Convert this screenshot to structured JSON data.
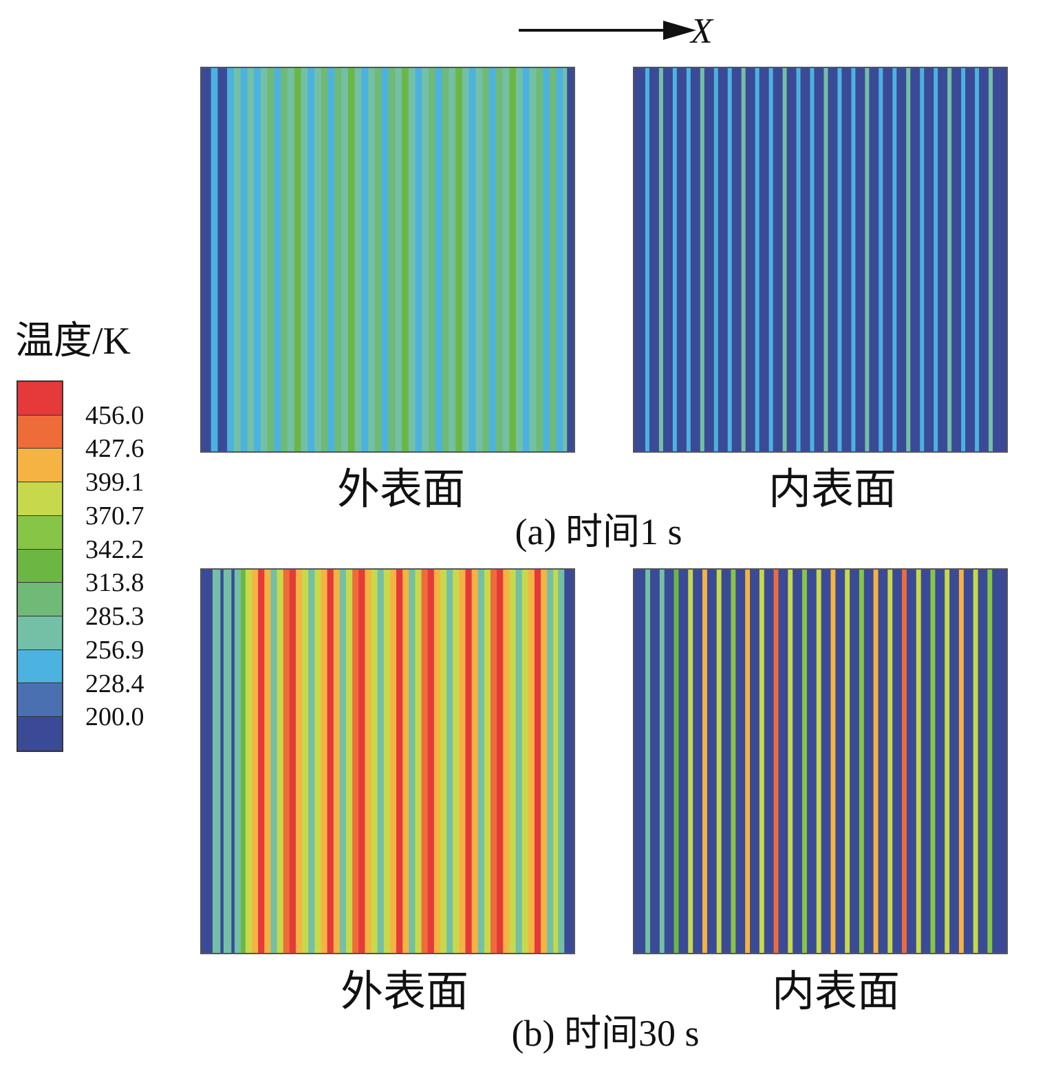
{
  "axis": {
    "direction_label": "X"
  },
  "legend": {
    "title": "温度/K",
    "ticks": [
      "456.0",
      "427.6",
      "399.1",
      "370.7",
      "342.2",
      "313.8",
      "285.3",
      "256.9",
      "228.4",
      "200.0"
    ],
    "colors": [
      "#e5393a",
      "#ee6b3a",
      "#f5b343",
      "#c7d94a",
      "#86c545",
      "#6cb744",
      "#6fba77",
      "#73c0a6",
      "#4cb2df",
      "#4a70b1",
      "#3b4a96"
    ]
  },
  "panels": [
    {
      "id": "a-outer",
      "label": "外表面"
    },
    {
      "id": "a-inner",
      "label": "内表面"
    },
    {
      "id": "b-outer",
      "label": "外表面"
    },
    {
      "id": "b-inner",
      "label": "内表面"
    }
  ],
  "captions": {
    "a": "(a) 时间1 s",
    "b": "(b) 时间30 s"
  }
}
